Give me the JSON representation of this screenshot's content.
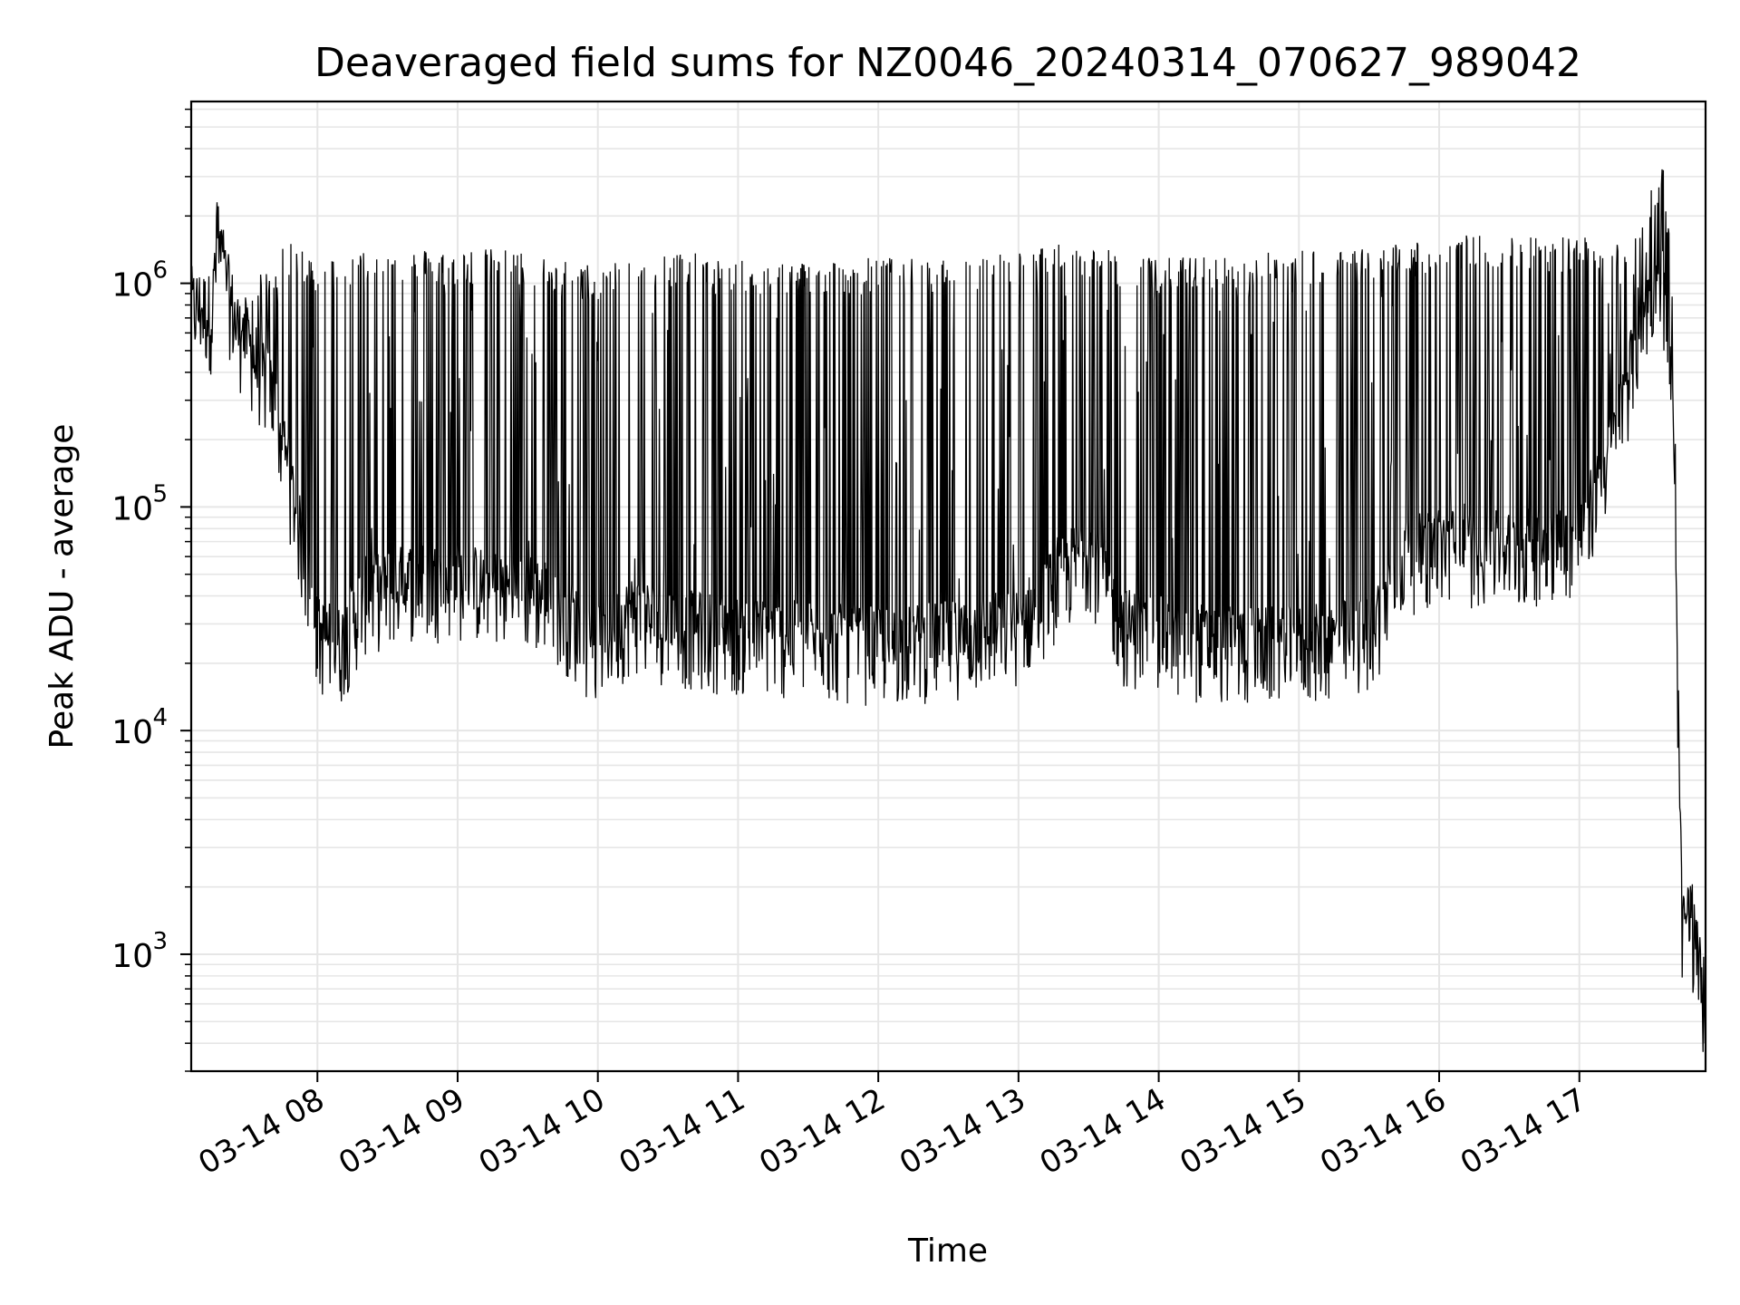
{
  "chart_data": {
    "type": "line",
    "title": "Deaveraged field sums for NZ0046_20240314_070627_989042",
    "xlabel": "Time",
    "ylabel": "Peak ADU - average",
    "yscale": "log",
    "ylim": [
      300,
      6500000
    ],
    "xlim": [
      "2024-03-14 07:06",
      "2024-03-14 17:54"
    ],
    "grid": true,
    "legend": "none",
    "line_color": "#000000",
    "x_ticks": [
      {
        "label": "03-14 08",
        "t": "2024-03-14 08:00"
      },
      {
        "label": "03-14 09",
        "t": "2024-03-14 09:00"
      },
      {
        "label": "03-14 10",
        "t": "2024-03-14 10:00"
      },
      {
        "label": "03-14 11",
        "t": "2024-03-14 11:00"
      },
      {
        "label": "03-14 12",
        "t": "2024-03-14 12:00"
      },
      {
        "label": "03-14 13",
        "t": "2024-03-14 13:00"
      },
      {
        "label": "03-14 14",
        "t": "2024-03-14 14:00"
      },
      {
        "label": "03-14 15",
        "t": "2024-03-14 15:00"
      },
      {
        "label": "03-14 16",
        "t": "2024-03-14 16:00"
      },
      {
        "label": "03-14 17",
        "t": "2024-03-14 17:00"
      }
    ],
    "y_ticks": [
      {
        "base": "10",
        "exp": "3",
        "value": 1000
      },
      {
        "base": "10",
        "exp": "4",
        "value": 10000
      },
      {
        "base": "10",
        "exp": "5",
        "value": 100000
      },
      {
        "base": "10",
        "exp": "6",
        "value": 1000000
      }
    ],
    "series": [
      {
        "style": "dense oscillation between baseline and spike values",
        "points": [
          {
            "t": "2024-03-14 07:06",
            "low": 600000,
            "high": 900000
          },
          {
            "t": "2024-03-14 07:15",
            "low": 550000,
            "high": 850000
          },
          {
            "t": "2024-03-14 07:17",
            "low": 1100000,
            "high": 2500000
          },
          {
            "t": "2024-03-14 07:25",
            "low": 500000,
            "high": 700000
          },
          {
            "t": "2024-03-14 07:40",
            "low": 250000,
            "high": 1200000
          },
          {
            "t": "2024-03-14 07:50",
            "low": 80000,
            "high": 1400000
          },
          {
            "t": "2024-03-14 08:00",
            "low": 20000,
            "high": 1200000
          },
          {
            "t": "2024-03-14 08:10",
            "low": 18000,
            "high": 1200000
          },
          {
            "t": "2024-03-14 08:20",
            "low": 30000,
            "high": 1300000
          },
          {
            "t": "2024-03-14 08:40",
            "low": 35000,
            "high": 1300000
          },
          {
            "t": "2024-03-14 09:00",
            "low": 35000,
            "high": 1300000
          },
          {
            "t": "2024-03-14 09:20",
            "low": 32000,
            "high": 1300000
          },
          {
            "t": "2024-03-14 09:40",
            "low": 30000,
            "high": 1200000
          },
          {
            "t": "2024-03-14 09:58",
            "low": 18000,
            "high": 1100000
          },
          {
            "t": "2024-03-14 10:15",
            "low": 25000,
            "high": 1250000
          },
          {
            "t": "2024-03-14 10:30",
            "low": 22000,
            "high": 1300000
          },
          {
            "t": "2024-03-14 11:00",
            "low": 20000,
            "high": 1150000
          },
          {
            "t": "2024-03-14 11:30",
            "low": 19000,
            "high": 1150000
          },
          {
            "t": "2024-03-14 12:00",
            "low": 18000,
            "high": 1200000
          },
          {
            "t": "2024-03-14 12:30",
            "low": 19000,
            "high": 1150000
          },
          {
            "t": "2024-03-14 13:00",
            "low": 22000,
            "high": 1300000
          },
          {
            "t": "2024-03-14 13:30",
            "low": 50000,
            "high": 1400000
          },
          {
            "t": "2024-03-14 13:45",
            "low": 22000,
            "high": 1200000
          },
          {
            "t": "2024-03-14 14:00",
            "low": 20000,
            "high": 1200000
          },
          {
            "t": "2024-03-14 14:30",
            "low": 18000,
            "high": 1200000
          },
          {
            "t": "2024-03-14 15:00",
            "low": 18000,
            "high": 1300000
          },
          {
            "t": "2024-03-14 15:30",
            "low": 20000,
            "high": 1300000
          },
          {
            "t": "2024-03-14 15:45",
            "low": 45000,
            "high": 1400000
          },
          {
            "t": "2024-03-14 16:00",
            "low": 50000,
            "high": 1500000
          },
          {
            "t": "2024-03-14 16:30",
            "low": 48000,
            "high": 1500000
          },
          {
            "t": "2024-03-14 17:00",
            "low": 55000,
            "high": 1500000
          },
          {
            "t": "2024-03-14 17:15",
            "low": 150000,
            "high": 1500000
          },
          {
            "t": "2024-03-14 17:28",
            "low": 600000,
            "high": 1800000
          },
          {
            "t": "2024-03-14 17:35",
            "low": 900000,
            "high": 4000000
          },
          {
            "t": "2024-03-14 17:40",
            "low": 200000,
            "high": 1000000
          },
          {
            "t": "2024-03-14 17:44",
            "low": 900,
            "high": 1500
          },
          {
            "t": "2024-03-14 17:48",
            "low": 1000,
            "high": 2100
          },
          {
            "t": "2024-03-14 17:54",
            "low": 450,
            "high": 700
          }
        ]
      }
    ]
  }
}
